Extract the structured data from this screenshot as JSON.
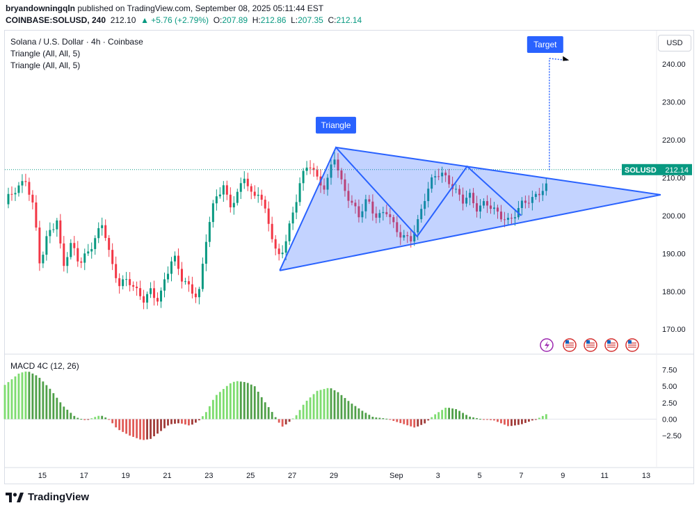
{
  "header": {
    "author": "bryandowningqln",
    "published_text": "published on TradingView.com, September 08, 2025 05:11:44 EST",
    "symbol": "COINBASE:SOLUSD, 240",
    "last": "212.10",
    "change": "▲ +5.76 (+2.79%)",
    "o_label": "O:",
    "o": "207.89",
    "h_label": "H:",
    "h": "212.86",
    "l_label": "L:",
    "l": "207.35",
    "c_label": "C:",
    "c": "212.14"
  },
  "legend": {
    "title": "Solana / U.S. Dollar · 4h · Coinbase",
    "indicator1": "Triangle (All, All, 5)",
    "indicator2": "Triangle (All, All, 5)",
    "macd": "MACD 4C (12, 26)"
  },
  "currency_button": "USD",
  "price_tag": {
    "symbol": "SOLUSD",
    "value": "212.14",
    "color": "#089981"
  },
  "annotations": {
    "triangle": "Triangle",
    "target": "Target"
  },
  "footer": {
    "brand": "TradingView"
  },
  "colors": {
    "up": "#089981",
    "down": "#f23645",
    "pattern": "#2962ff",
    "macd_pos": "#7ddc6f",
    "macd_neg": "#e05b57"
  },
  "chart_data": {
    "type": "candlestick",
    "symbol": "SOLUSD",
    "timeframe": "4h",
    "y_ticks": [
      "240.00",
      "230.00",
      "220.00",
      "210.00",
      "200.00",
      "190.00",
      "180.00",
      "170.00"
    ],
    "y_range": [
      166,
      247
    ],
    "x_ticks": [
      "15",
      "17",
      "19",
      "21",
      "23",
      "25",
      "27",
      "29",
      "Sep",
      "3",
      "5",
      "7",
      "9",
      "11",
      "13"
    ],
    "x_tick_days": [
      15,
      17,
      19,
      21,
      23,
      25,
      27,
      29,
      32,
      34,
      36,
      38,
      40,
      42,
      44
    ],
    "x_range_days": [
      13.2,
      44.5
    ],
    "last_price": 212.14,
    "close_path": [
      [
        13.2,
        203
      ],
      [
        13.7,
        207
      ],
      [
        14.2,
        210
      ],
      [
        14.6,
        201
      ],
      [
        14.9,
        186
      ],
      [
        15.3,
        196
      ],
      [
        15.7,
        199
      ],
      [
        16.0,
        187
      ],
      [
        16.4,
        192
      ],
      [
        16.8,
        187
      ],
      [
        17.2,
        191
      ],
      [
        17.6,
        195
      ],
      [
        17.9,
        198
      ],
      [
        18.3,
        187
      ],
      [
        18.7,
        182
      ],
      [
        19.1,
        184
      ],
      [
        19.5,
        180
      ],
      [
        19.9,
        177
      ],
      [
        20.2,
        180
      ],
      [
        20.6,
        178
      ],
      [
        20.9,
        184
      ],
      [
        21.3,
        189
      ],
      [
        21.7,
        183
      ],
      [
        22.1,
        181
      ],
      [
        22.5,
        179
      ],
      [
        22.9,
        195
      ],
      [
        23.3,
        204
      ],
      [
        23.7,
        208
      ],
      [
        24.0,
        203
      ],
      [
        24.4,
        206
      ],
      [
        24.7,
        210
      ],
      [
        25.1,
        204
      ],
      [
        25.4,
        207
      ],
      [
        25.9,
        198
      ],
      [
        26.3,
        188
      ],
      [
        26.6,
        191
      ],
      [
        27.0,
        200
      ],
      [
        27.4,
        210
      ],
      [
        27.8,
        214
      ],
      [
        28.2,
        209
      ],
      [
        28.6,
        207
      ],
      [
        29.0,
        217
      ],
      [
        29.4,
        208
      ],
      [
        29.8,
        203
      ],
      [
        30.2,
        200
      ],
      [
        30.6,
        205
      ],
      [
        31.1,
        199
      ],
      [
        31.5,
        201
      ],
      [
        31.9,
        197
      ],
      [
        32.3,
        195
      ],
      [
        32.7,
        194
      ],
      [
        33.0,
        197
      ],
      [
        33.4,
        205
      ],
      [
        33.8,
        211
      ],
      [
        34.1,
        212
      ],
      [
        34.5,
        209
      ],
      [
        34.8,
        206
      ],
      [
        35.2,
        204
      ],
      [
        35.5,
        206
      ],
      [
        35.9,
        202
      ],
      [
        36.3,
        203
      ],
      [
        36.7,
        201
      ],
      [
        37.1,
        200
      ],
      [
        37.4,
        199
      ],
      [
        37.8,
        201
      ],
      [
        38.1,
        203
      ],
      [
        38.5,
        204
      ],
      [
        38.9,
        207
      ],
      [
        39.2,
        208
      ],
      [
        39.35,
        212.14
      ]
    ],
    "triangle_pattern": {
      "label": "Triangle",
      "points": [
        [
          26.4,
          185.5
        ],
        [
          29.1,
          218
        ],
        [
          33.0,
          194.5
        ],
        [
          35.4,
          213
        ],
        [
          38.0,
          200
        ],
        [
          44.7,
          205.5
        ]
      ],
      "upper_line": [
        [
          29.1,
          218
        ],
        [
          44.7,
          205.5
        ]
      ],
      "lower_line": [
        [
          26.4,
          185.5
        ],
        [
          44.7,
          205.5
        ]
      ]
    },
    "target": {
      "label": "Target",
      "from": [
        39.35,
        212
      ],
      "to": [
        39.35,
        241.5
      ],
      "end": [
        40.2,
        241
      ]
    },
    "macd": {
      "name": "MACD 4C (12, 26)",
      "y_ticks": [
        "7.50",
        "5.00",
        "2.50",
        "0.00",
        "−2.50"
      ],
      "y_range": [
        -4.5,
        8.5
      ],
      "histogram_anchors": [
        [
          13.2,
          5.2
        ],
        [
          13.9,
          7.0
        ],
        [
          14.3,
          7.3
        ],
        [
          14.8,
          6.5
        ],
        [
          15.4,
          4.5
        ],
        [
          16.0,
          2.0
        ],
        [
          16.6,
          0.3
        ],
        [
          17.1,
          -0.2
        ],
        [
          17.5,
          0.3
        ],
        [
          17.8,
          0.6
        ],
        [
          18.2,
          0
        ],
        [
          18.6,
          -1.5
        ],
        [
          19.2,
          -2.5
        ],
        [
          19.8,
          -3.2
        ],
        [
          20.2,
          -3.0
        ],
        [
          20.7,
          -1.8
        ],
        [
          21.1,
          -0.8
        ],
        [
          21.6,
          -0.6
        ],
        [
          22.1,
          -1.0
        ],
        [
          22.5,
          -0.3
        ],
        [
          22.9,
          1.2
        ],
        [
          23.3,
          3.5
        ],
        [
          24.0,
          5.4
        ],
        [
          24.3,
          5.8
        ],
        [
          24.8,
          5.6
        ],
        [
          25.2,
          5.0
        ],
        [
          25.6,
          3.0
        ],
        [
          26.1,
          0.8
        ],
        [
          26.5,
          -1.2
        ],
        [
          26.8,
          -0.6
        ],
        [
          27.2,
          0.6
        ],
        [
          27.6,
          2.5
        ],
        [
          28.2,
          4.3
        ],
        [
          28.8,
          4.8
        ],
        [
          29.2,
          4.1
        ],
        [
          29.8,
          2.5
        ],
        [
          30.4,
          1.2
        ],
        [
          30.9,
          0.3
        ],
        [
          31.5,
          0.1
        ],
        [
          32.2,
          -0.6
        ],
        [
          32.9,
          -1.3
        ],
        [
          33.4,
          -0.6
        ],
        [
          33.8,
          0.6
        ],
        [
          34.4,
          1.8
        ],
        [
          34.9,
          1.5
        ],
        [
          35.5,
          0.4
        ],
        [
          36.1,
          0
        ],
        [
          36.7,
          -0.2
        ],
        [
          37.4,
          -1.1
        ],
        [
          38.0,
          -0.8
        ],
        [
          38.8,
          0.1
        ],
        [
          39.35,
          1.0
        ]
      ]
    }
  }
}
